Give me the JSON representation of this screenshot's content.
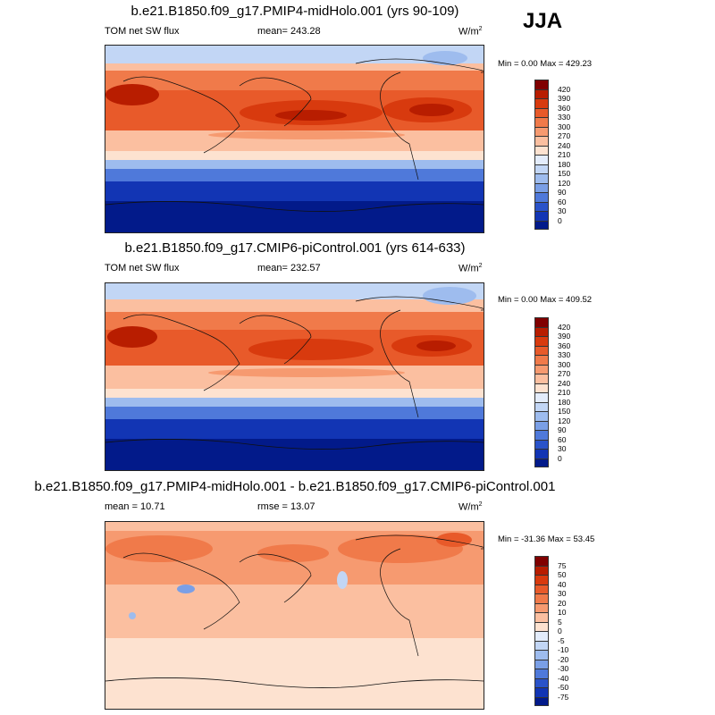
{
  "season": "JJA",
  "panels": [
    {
      "title": "b.e21.B1850.f09_g17.PMIP4-midHolo.001 (yrs 90-109)",
      "left_label": "TOM net SW flux",
      "center_label": "mean= 243.28",
      "units": "W/m",
      "units_sup": "2",
      "minmax": "Min =   0.00 Max = 429.23",
      "colorbar": {
        "labels": [
          "420",
          "390",
          "360",
          "330",
          "300",
          "270",
          "240",
          "210",
          "180",
          "150",
          "120",
          "90",
          "60",
          "30",
          "0"
        ],
        "colors": [
          "#800000",
          "#b81d00",
          "#d83a0e",
          "#e85a2a",
          "#f07a4a",
          "#f69a70",
          "#fbbfa0",
          "#fde2d0",
          "#e3ecfb",
          "#c2d6f5",
          "#9ebcee",
          "#7a9fe6",
          "#4f79da",
          "#2a53c9",
          "#1235b4",
          "#021a8a"
        ]
      }
    },
    {
      "title": "b.e21.B1850.f09_g17.CMIP6-piControl.001 (yrs 614-633)",
      "left_label": "TOM net SW flux",
      "center_label": "mean= 232.57",
      "units": "W/m",
      "units_sup": "2",
      "minmax": "Min =   0.00 Max = 409.52",
      "colorbar": {
        "labels": [
          "420",
          "390",
          "360",
          "330",
          "300",
          "270",
          "240",
          "210",
          "180",
          "150",
          "120",
          "90",
          "60",
          "30",
          "0"
        ],
        "colors": [
          "#800000",
          "#b81d00",
          "#d83a0e",
          "#e85a2a",
          "#f07a4a",
          "#f69a70",
          "#fbbfa0",
          "#fde2d0",
          "#e3ecfb",
          "#c2d6f5",
          "#9ebcee",
          "#7a9fe6",
          "#4f79da",
          "#2a53c9",
          "#1235b4",
          "#021a8a"
        ]
      }
    },
    {
      "title": "b.e21.B1850.f09_g17.PMIP4-midHolo.001 - b.e21.B1850.f09_g17.CMIP6-piControl.001",
      "left_label": "mean =  10.71",
      "center_label": "rmse =  13.07",
      "units": "W/m",
      "units_sup": "2",
      "minmax": "Min = -31.36 Max =  53.45",
      "colorbar": {
        "labels": [
          "75",
          "50",
          "40",
          "30",
          "20",
          "10",
          "5",
          "0",
          "-5",
          "-10",
          "-20",
          "-30",
          "-40",
          "-50",
          "-75"
        ],
        "colors": [
          "#800000",
          "#b81d00",
          "#d83a0e",
          "#e85a2a",
          "#f07a4a",
          "#f69a70",
          "#fbbfa0",
          "#fde2d0",
          "#e3ecfb",
          "#c2d6f5",
          "#9ebcee",
          "#7a9fe6",
          "#4f79da",
          "#2a53c9",
          "#1235b4",
          "#021a8a"
        ]
      }
    }
  ]
}
